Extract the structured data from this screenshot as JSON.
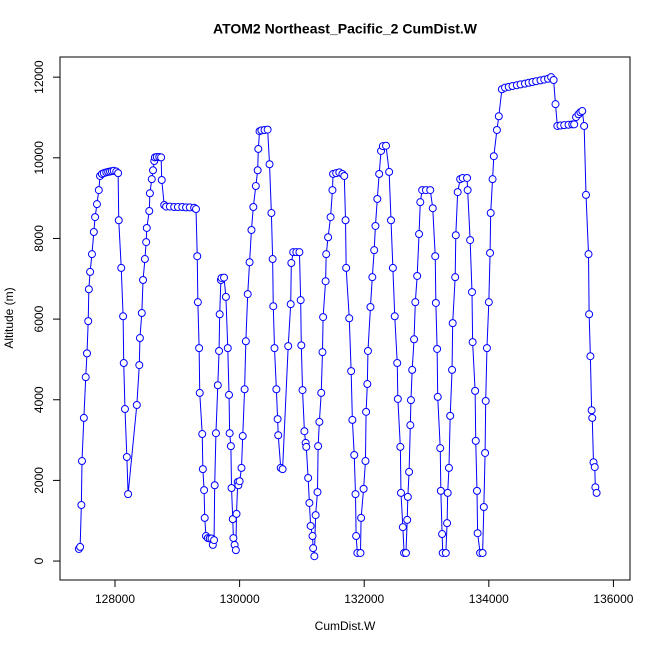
{
  "chart_data": {
    "type": "line",
    "title": "ATOM2 Northeast_Pacific_2 CumDist.W",
    "xlabel": "CumDist.W",
    "ylabel": "Altitude (m)",
    "color": "#0000ff",
    "xlim": [
      127117,
      136266
    ],
    "ylim": [
      -470,
      12500
    ],
    "xticks": [
      128000,
      130000,
      132000,
      134000,
      136000
    ],
    "yticks": [
      0,
      2000,
      4000,
      6000,
      8000,
      10000,
      12000
    ],
    "x": [
      127420,
      127440,
      127460,
      127470,
      127500,
      127530,
      127550,
      127570,
      127580,
      127600,
      127630,
      127660,
      127680,
      127710,
      127740,
      127760,
      127790,
      127820,
      127860,
      127890,
      127920,
      127950,
      127980,
      128020,
      128050,
      128060,
      128100,
      128130,
      128140,
      128160,
      128190,
      128210,
      128350,
      128390,
      128400,
      128430,
      128450,
      128480,
      128500,
      128510,
      128550,
      128560,
      128590,
      128610,
      128630,
      128640,
      128670,
      128710,
      128740,
      128750,
      128790,
      128820,
      128880,
      128950,
      129010,
      129080,
      129140,
      129200,
      129270,
      129300,
      129320,
      129330,
      129350,
      129360,
      129400,
      129410,
      129430,
      129440,
      129460,
      129490,
      129520,
      129550,
      129570,
      129590,
      129600,
      129620,
      129650,
      129670,
      129680,
      129700,
      129710,
      129750,
      129780,
      129810,
      129830,
      129840,
      129860,
      129870,
      129890,
      129900,
      129920,
      129940,
      129950,
      129970,
      129980,
      130000,
      130030,
      130050,
      130080,
      130100,
      130130,
      130160,
      130190,
      130220,
      130260,
      130290,
      130300,
      130320,
      130350,
      130400,
      130450,
      130480,
      130510,
      130530,
      130540,
      130560,
      130590,
      130610,
      130620,
      130660,
      130690,
      130780,
      130820,
      130830,
      130860,
      130910,
      130960,
      130980,
      130990,
      131010,
      131040,
      131060,
      131070,
      131100,
      131120,
      131140,
      131170,
      131180,
      131200,
      131220,
      131250,
      131260,
      131280,
      131310,
      131330,
      131340,
      131380,
      131390,
      131420,
      131460,
      131490,
      131500,
      131550,
      131600,
      131650,
      131680,
      131700,
      131710,
      131760,
      131790,
      131810,
      131840,
      131860,
      131870,
      131890,
      131940,
      131950,
      131990,
      132020,
      132030,
      132050,
      132060,
      132100,
      132130,
      132160,
      132180,
      132210,
      132240,
      132270,
      132300,
      132350,
      132400,
      132430,
      132460,
      132490,
      132530,
      132540,
      132580,
      132590,
      132620,
      132640,
      132670,
      132690,
      132700,
      132720,
      132740,
      132750,
      132770,
      132800,
      132820,
      132850,
      132880,
      132900,
      132930,
      132990,
      133060,
      133100,
      133140,
      133150,
      133170,
      133180,
      133220,
      133230,
      133250,
      133260,
      133310,
      133330,
      133340,
      133360,
      133380,
      133410,
      133420,
      133460,
      133470,
      133500,
      133540,
      133580,
      133650,
      133660,
      133700,
      133730,
      133740,
      133780,
      133790,
      133810,
      133820,
      133860,
      133900,
      133920,
      133940,
      133950,
      133970,
      134000,
      134020,
      134030,
      134060,
      134080,
      134130,
      134160,
      134210,
      134260,
      134320,
      134380,
      134450,
      134510,
      134580,
      134640,
      134700,
      134760,
      134830,
      134890,
      134950,
      135000,
      135040,
      135070,
      135100,
      135150,
      135210,
      135280,
      135340,
      135370,
      135400,
      135440,
      135470,
      135500,
      135530,
      135560,
      135600,
      135610,
      135630,
      135650,
      135660,
      135680,
      135700,
      135710,
      135730
    ],
    "values": [
      300,
      350,
      1390,
      2480,
      3550,
      4560,
      5150,
      5950,
      6740,
      7170,
      7610,
      8160,
      8530,
      8850,
      9200,
      9550,
      9600,
      9620,
      9640,
      9650,
      9660,
      9670,
      9680,
      9660,
      9620,
      8450,
      7270,
      6070,
      4910,
      3770,
      2580,
      1660,
      3870,
      4860,
      5530,
      6150,
      6970,
      7490,
      7910,
      8260,
      8680,
      9120,
      9470,
      9690,
      9920,
      10010,
      10020,
      10020,
      10010,
      9450,
      8830,
      8790,
      8790,
      8780,
      8780,
      8780,
      8770,
      8770,
      8760,
      8730,
      7560,
      6420,
      5280,
      4170,
      3150,
      2280,
      1760,
      1070,
      620,
      570,
      560,
      560,
      400,
      520,
      1880,
      3170,
      4360,
      5210,
      6120,
      6970,
      7020,
      7030,
      6550,
      5280,
      4120,
      3170,
      2850,
      1810,
      1040,
      570,
      400,
      270,
      1170,
      1960,
      1880,
      1980,
      2310,
      3100,
      4260,
      5450,
      6620,
      7410,
      8210,
      8780,
      9300,
      9690,
      10220,
      10660,
      10680,
      10690,
      10700,
      9840,
      8630,
      7490,
      6320,
      5280,
      4260,
      3520,
      3120,
      2310,
      2280,
      5330,
      6370,
      7390,
      7660,
      7660,
      7660,
      6470,
      5350,
      4240,
      3220,
      2930,
      2830,
      2060,
      1440,
      870,
      620,
      320,
      120,
      1140,
      1710,
      2850,
      3450,
      4170,
      5180,
      6050,
      6940,
      7610,
      8030,
      8530,
      9200,
      9600,
      9620,
      9640,
      9600,
      9550,
      8450,
      7270,
      6020,
      4710,
      3500,
      2630,
      1660,
      620,
      200,
      200,
      1070,
      1790,
      2480,
      3700,
      4390,
      5210,
      6300,
      7040,
      7710,
      8310,
      8980,
      9600,
      10170,
      10290,
      10300,
      9650,
      8450,
      7270,
      6070,
      4910,
      4020,
      2830,
      1690,
      840,
      200,
      200,
      1020,
      1590,
      2210,
      3370,
      3990,
      4740,
      5500,
      6420,
      7070,
      8110,
      8900,
      9200,
      9200,
      9200,
      8750,
      7560,
      6400,
      5260,
      4070,
      2800,
      1740,
      670,
      200,
      200,
      940,
      1690,
      2310,
      3600,
      4740,
      5900,
      7040,
      8080,
      9150,
      9470,
      9500,
      9500,
      9200,
      7960,
      6670,
      5430,
      4220,
      2980,
      1740,
      690,
      200,
      200,
      1340,
      2680,
      3970,
      5280,
      6420,
      7640,
      8630,
      9470,
      10040,
      10690,
      11030,
      11700,
      11740,
      11760,
      11780,
      11800,
      11820,
      11840,
      11860,
      11880,
      11900,
      11920,
      11940,
      11960,
      12000,
      11930,
      11330,
      10790,
      10800,
      10810,
      10820,
      10830,
      10830,
      11010,
      11080,
      11130,
      11160,
      10790,
      9080,
      7610,
      6120,
      5080,
      3740,
      3550,
      2450,
      2330,
      1830,
      1690
    ]
  }
}
